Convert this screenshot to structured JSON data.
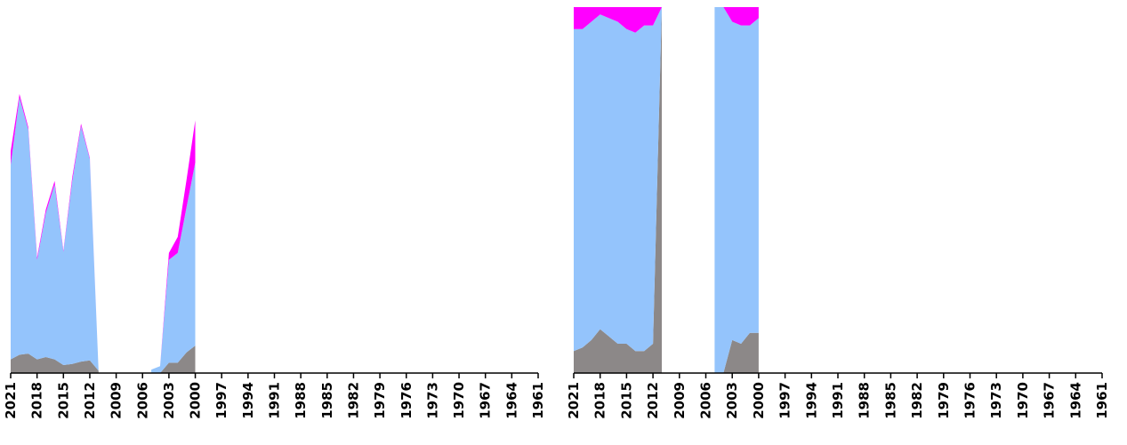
{
  "chart_data": [
    {
      "type": "area",
      "stacked": true,
      "x_reversed": true,
      "xlim": [
        2021,
        1961
      ],
      "ylim": [
        0,
        320
      ],
      "grid": false,
      "x_ticks": [
        "2021",
        "2018",
        "2015",
        "2012",
        "2009",
        "2006",
        "2003",
        "2000",
        "1997",
        "1994",
        "1991",
        "1988",
        "1985",
        "1982",
        "1979",
        "1976",
        "1973",
        "1970",
        "1967",
        "1964",
        "1961"
      ],
      "colors": [
        "#8c8888",
        "#94c4fc",
        "#ff00ff"
      ],
      "segments": [
        {
          "x": [
            2021,
            2020,
            2019,
            2018,
            2017,
            2016,
            2015,
            2014,
            2013,
            2012,
            2011
          ],
          "series": [
            {
              "values": [
                12,
                16,
                17,
                12,
                14,
                12,
                7,
                8,
                10,
                11,
                2
              ]
            },
            {
              "values": [
                170,
                225,
                196,
                87,
                126,
                153,
                99,
                160,
                206,
                176,
                0
              ]
            },
            {
              "values": [
                12,
                3,
                2,
                2,
                3,
                3,
                1,
                3,
                2,
                1,
                0
              ]
            }
          ]
        },
        {
          "x": [
            2005,
            2004,
            2003,
            2002,
            2001,
            2000
          ],
          "series": [
            {
              "values": [
                0,
                0,
                9,
                9,
                18,
                24
              ]
            },
            {
              "values": [
                3,
                6,
                90,
                96,
                127,
                160
              ]
            },
            {
              "values": [
                0,
                0,
                6,
                14,
                24,
                37
              ]
            }
          ]
        }
      ]
    },
    {
      "type": "area",
      "stacked": true,
      "percent": true,
      "x_reversed": true,
      "xlim": [
        2021,
        1961
      ],
      "ylim": [
        0,
        100
      ],
      "grid": false,
      "x_ticks": [
        "2021",
        "2018",
        "2015",
        "2012",
        "2009",
        "2006",
        "2003",
        "2000",
        "1997",
        "1994",
        "1991",
        "1988",
        "1985",
        "1982",
        "1979",
        "1976",
        "1973",
        "1970",
        "1967",
        "1964",
        "1961"
      ],
      "colors": [
        "#8c8888",
        "#94c4fc",
        "#ff00ff"
      ],
      "segments": [
        {
          "x": [
            2021,
            2020,
            2019,
            2018,
            2017,
            2016,
            2015,
            2014,
            2013,
            2012,
            2011
          ],
          "series": [
            {
              "values": [
                6,
                7,
                9,
                12,
                10,
                8,
                8,
                6,
                6,
                8,
                100
              ]
            },
            {
              "values": [
                88,
                87,
                87,
                86,
                87,
                88,
                86,
                87,
                89,
                87,
                0
              ]
            },
            {
              "values": [
                6,
                6,
                4,
                2,
                3,
                4,
                6,
                7,
                5,
                5,
                0
              ]
            }
          ]
        },
        {
          "x": [
            2005,
            2004,
            2003,
            2002,
            2001,
            2000
          ],
          "series": [
            {
              "values": [
                0,
                0,
                9,
                8,
                11,
                11
              ]
            },
            {
              "values": [
                100,
                100,
                87,
                87,
                84,
                86
              ]
            },
            {
              "values": [
                0,
                0,
                4,
                5,
                5,
                3
              ]
            }
          ]
        }
      ]
    }
  ]
}
